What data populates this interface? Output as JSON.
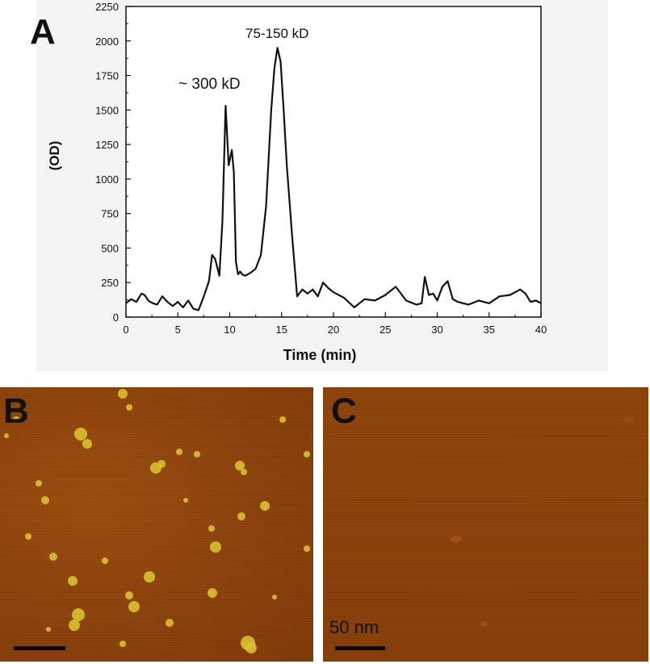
{
  "panels": {
    "a_label": "A",
    "b_label": "B",
    "c_label": "C"
  },
  "scale": {
    "label": "50 nm"
  },
  "colors": {
    "line": "#111111",
    "afm_background": "#8b3f08",
    "afm_particle": "#d8c030"
  },
  "chart_data": {
    "type": "line",
    "xlabel": "Time (min)",
    "ylabel": "(OD)",
    "xlim": [
      0,
      40
    ],
    "ylim": [
      0,
      2250
    ],
    "xticks": [
      0,
      5,
      10,
      15,
      20,
      25,
      30,
      35,
      40
    ],
    "yticks": [
      0,
      250,
      500,
      750,
      1000,
      1250,
      1500,
      1750,
      2000,
      2250
    ],
    "grid": false,
    "annotations": [
      {
        "text": "~  300 kD",
        "x": 10,
        "y": 1630
      },
      {
        "text": "75-150 kD",
        "x": 15,
        "y": 2030
      }
    ],
    "series": [
      {
        "x": [
          0,
          0.5,
          1,
          1.5,
          1.8,
          2.2,
          2.6,
          3,
          3.5,
          4,
          4.5,
          5,
          5.5,
          6,
          6.5,
          7,
          7.5,
          8,
          8.3,
          8.6,
          9,
          9.3,
          9.6,
          9.9,
          10.2,
          10.4,
          10.6,
          10.8,
          11,
          11.2,
          11.5,
          12,
          12.5,
          13,
          13.5,
          14,
          14.3,
          14.6,
          14.9,
          15.2,
          15.5,
          16,
          16.5,
          17,
          17.5,
          18,
          18.5,
          19,
          19.5,
          20,
          21,
          22,
          23,
          24,
          25,
          26,
          27,
          28,
          28.5,
          28.8,
          29.2,
          29.6,
          30,
          30.5,
          31,
          31.5,
          32,
          33,
          34,
          35,
          36,
          37,
          38,
          38.5,
          39,
          39.5,
          40
        ],
        "y": [
          100,
          130,
          110,
          170,
          160,
          115,
          100,
          90,
          150,
          110,
          80,
          110,
          70,
          120,
          60,
          50,
          150,
          260,
          450,
          420,
          300,
          700,
          1530,
          1100,
          1210,
          1050,
          400,
          310,
          330,
          310,
          300,
          320,
          350,
          450,
          800,
          1500,
          1800,
          1950,
          1850,
          1500,
          1100,
          600,
          150,
          200,
          170,
          200,
          150,
          250,
          210,
          180,
          140,
          70,
          130,
          120,
          160,
          220,
          120,
          90,
          100,
          290,
          160,
          170,
          120,
          220,
          260,
          130,
          110,
          90,
          120,
          100,
          150,
          160,
          200,
          170,
          110,
          120,
          100
        ]
      }
    ]
  }
}
